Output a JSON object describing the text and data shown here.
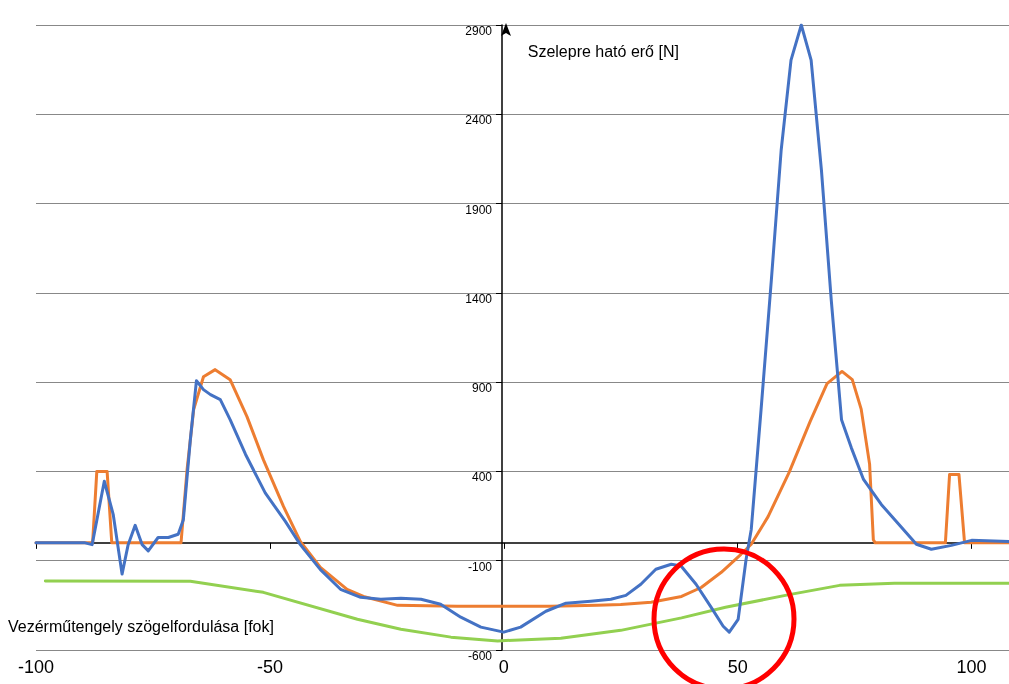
{
  "chart_data": {
    "type": "line",
    "ylabel": "Szelepre ható erő [N]",
    "xlim": [
      -100,
      108
    ],
    "ylim": [
      -600,
      2900
    ],
    "xticks": [
      -100,
      -50,
      0,
      50,
      100
    ],
    "yticks": [
      -600,
      -100,
      400,
      900,
      1400,
      1900,
      2400,
      2900
    ],
    "grid": "y",
    "marker": "none",
    "line_style": "solid",
    "series": [
      {
        "color": "#4472c4",
        "x": [
          -100,
          -89.5,
          -88,
          -85.4,
          -83.5,
          -81.6,
          -80.3,
          -78.8,
          -77.3,
          -76,
          -73.9,
          -71.7,
          -69.6,
          -68.5,
          -67,
          -65.7,
          -64.2,
          -62.7,
          -60.6,
          -58.5,
          -55.2,
          -51,
          -46.7,
          -43.5,
          -39.2,
          -34.9,
          -30.6,
          -26.3,
          -22,
          -17.7,
          -13.5,
          -9.2,
          -4.9,
          0,
          3.6,
          9,
          13.3,
          18.6,
          22.9,
          26.1,
          29.3,
          32.5,
          35.8,
          37.9,
          41.1,
          44.3,
          46.9,
          48.2,
          50.1,
          51.8,
          52.9,
          55,
          57.2,
          59.3,
          61.4,
          63.6,
          65.7,
          67.9,
          70,
          72.2,
          74.3,
          76.9,
          80.7,
          85,
          88.2,
          91.4,
          95.7,
          100,
          108
        ],
        "values": [
          0,
          0,
          -10,
          345,
          160,
          -175,
          -10,
          98,
          -10,
          -45,
          30,
          30,
          48,
          130,
          580,
          908,
          858,
          830,
          802,
          690,
          495,
          280,
          120,
          -10,
          -150,
          -260,
          -305,
          -316,
          -310,
          -316,
          -344,
          -416,
          -472,
          -500,
          -472,
          -383,
          -338,
          -327,
          -316,
          -294,
          -232,
          -148,
          -120,
          -130,
          -232,
          -360,
          -467,
          -500,
          -428,
          -92,
          75,
          746,
          1473,
          2200,
          2703,
          2900,
          2703,
          2088,
          1361,
          690,
          532,
          355,
          215,
          87,
          -8,
          -36,
          -14,
          14,
          8
        ]
      },
      {
        "color": "#ed7d31",
        "x": [
          -100,
          -87.9,
          -87,
          -84.8,
          -83.8,
          -69,
          -67.7,
          -66.3,
          -64.2,
          -61.7,
          -58.5,
          -54.9,
          -51.4,
          -47.1,
          -43.5,
          -39.2,
          -33.5,
          -30,
          -22.7,
          -10,
          0,
          10,
          20,
          25,
          31.5,
          38,
          42.2,
          46.5,
          50.7,
          52.9,
          56.5,
          61,
          65.5,
          69.1,
          72.3,
          74.5,
          76.4,
          78.2,
          79,
          79.4,
          94.4,
          95.3,
          97.3,
          98.5,
          108
        ],
        "values": [
          0,
          0,
          400,
          400,
          0,
          0,
          411,
          746,
          930,
          970,
          914,
          707,
          466,
          204,
          8,
          -137,
          -260,
          -300,
          -350,
          -355,
          -355,
          -355,
          -350,
          -345,
          -333,
          -300,
          -250,
          -165,
          -64,
          -8,
          147,
          395,
          680,
          892,
          960,
          914,
          749,
          441,
          17,
          0,
          0,
          383,
          383,
          0,
          0
        ]
      },
      {
        "name": "Vezérműtengely szögelfordulása [fok]",
        "color": "#92d050",
        "x": [
          -98,
          -67,
          -51.4,
          -31.3,
          -22,
          -11.3,
          -1.3,
          12.2,
          25,
          38,
          47.4,
          61,
          71.8,
          83.5,
          108
        ],
        "values": [
          -213,
          -215,
          -277,
          -428,
          -484,
          -528,
          -549,
          -534,
          -490,
          -420,
          -361,
          -290,
          -238,
          -226,
          -226
        ]
      }
    ]
  }
}
